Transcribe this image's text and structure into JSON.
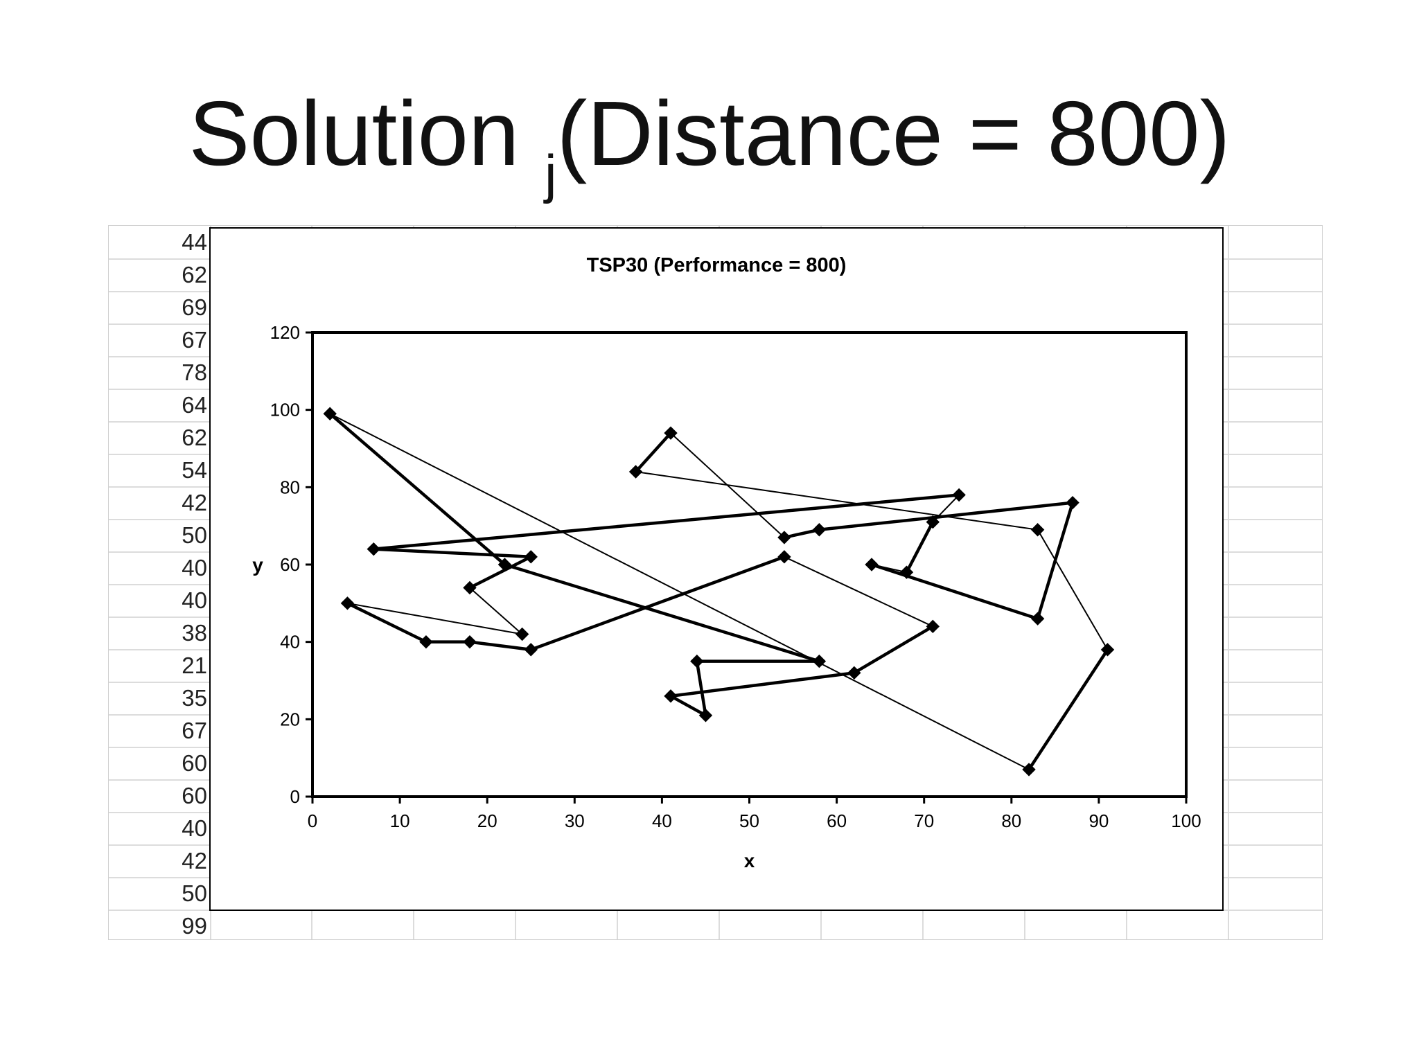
{
  "slide": {
    "title_main": "Solution ",
    "title_sub": "j",
    "title_rest": "(Distance = 800)"
  },
  "spreadsheet": {
    "cells": [
      "44",
      "62",
      "69",
      "67",
      "78",
      "64",
      "62",
      "54",
      "42",
      "50",
      "40",
      "40",
      "38",
      "21",
      "35",
      "67",
      "60",
      "60",
      "40",
      "42",
      "50",
      "99"
    ]
  },
  "chart_data": {
    "type": "line",
    "title": "TSP30 (Performance = 800)",
    "xlabel": "x",
    "ylabel": "y",
    "xlim": [
      0,
      100
    ],
    "ylim": [
      0,
      120
    ],
    "xticks": [
      "0",
      "10",
      "20",
      "30",
      "40",
      "50",
      "60",
      "70",
      "80",
      "90",
      "100"
    ],
    "yticks": [
      "0",
      "20",
      "40",
      "60",
      "80",
      "100",
      "120"
    ],
    "marker": "diamond",
    "line_color": "#000000",
    "series": [
      {
        "points": [
          [
            37,
            84
          ],
          [
            41,
            94
          ],
          [
            54,
            67
          ],
          [
            58,
            69
          ],
          [
            87,
            76
          ],
          [
            83,
            46
          ],
          [
            64,
            60
          ],
          [
            68,
            58
          ],
          [
            71,
            71
          ],
          [
            74,
            78
          ],
          [
            7,
            64
          ],
          [
            25,
            62
          ],
          [
            18,
            54
          ],
          [
            24,
            42
          ],
          [
            4,
            50
          ],
          [
            13,
            40
          ],
          [
            18,
            40
          ],
          [
            25,
            38
          ],
          [
            54,
            62
          ],
          [
            71,
            44
          ],
          [
            62,
            32
          ],
          [
            41,
            26
          ],
          [
            45,
            21
          ],
          [
            44,
            35
          ],
          [
            58,
            35
          ],
          [
            22,
            60
          ],
          [
            2,
            99
          ],
          [
            82,
            7
          ],
          [
            91,
            38
          ],
          [
            83,
            69
          ]
        ],
        "thin_segments": [
          1,
          6,
          8,
          12,
          13,
          18,
          26,
          28,
          29
        ],
        "closed": true
      }
    ]
  }
}
